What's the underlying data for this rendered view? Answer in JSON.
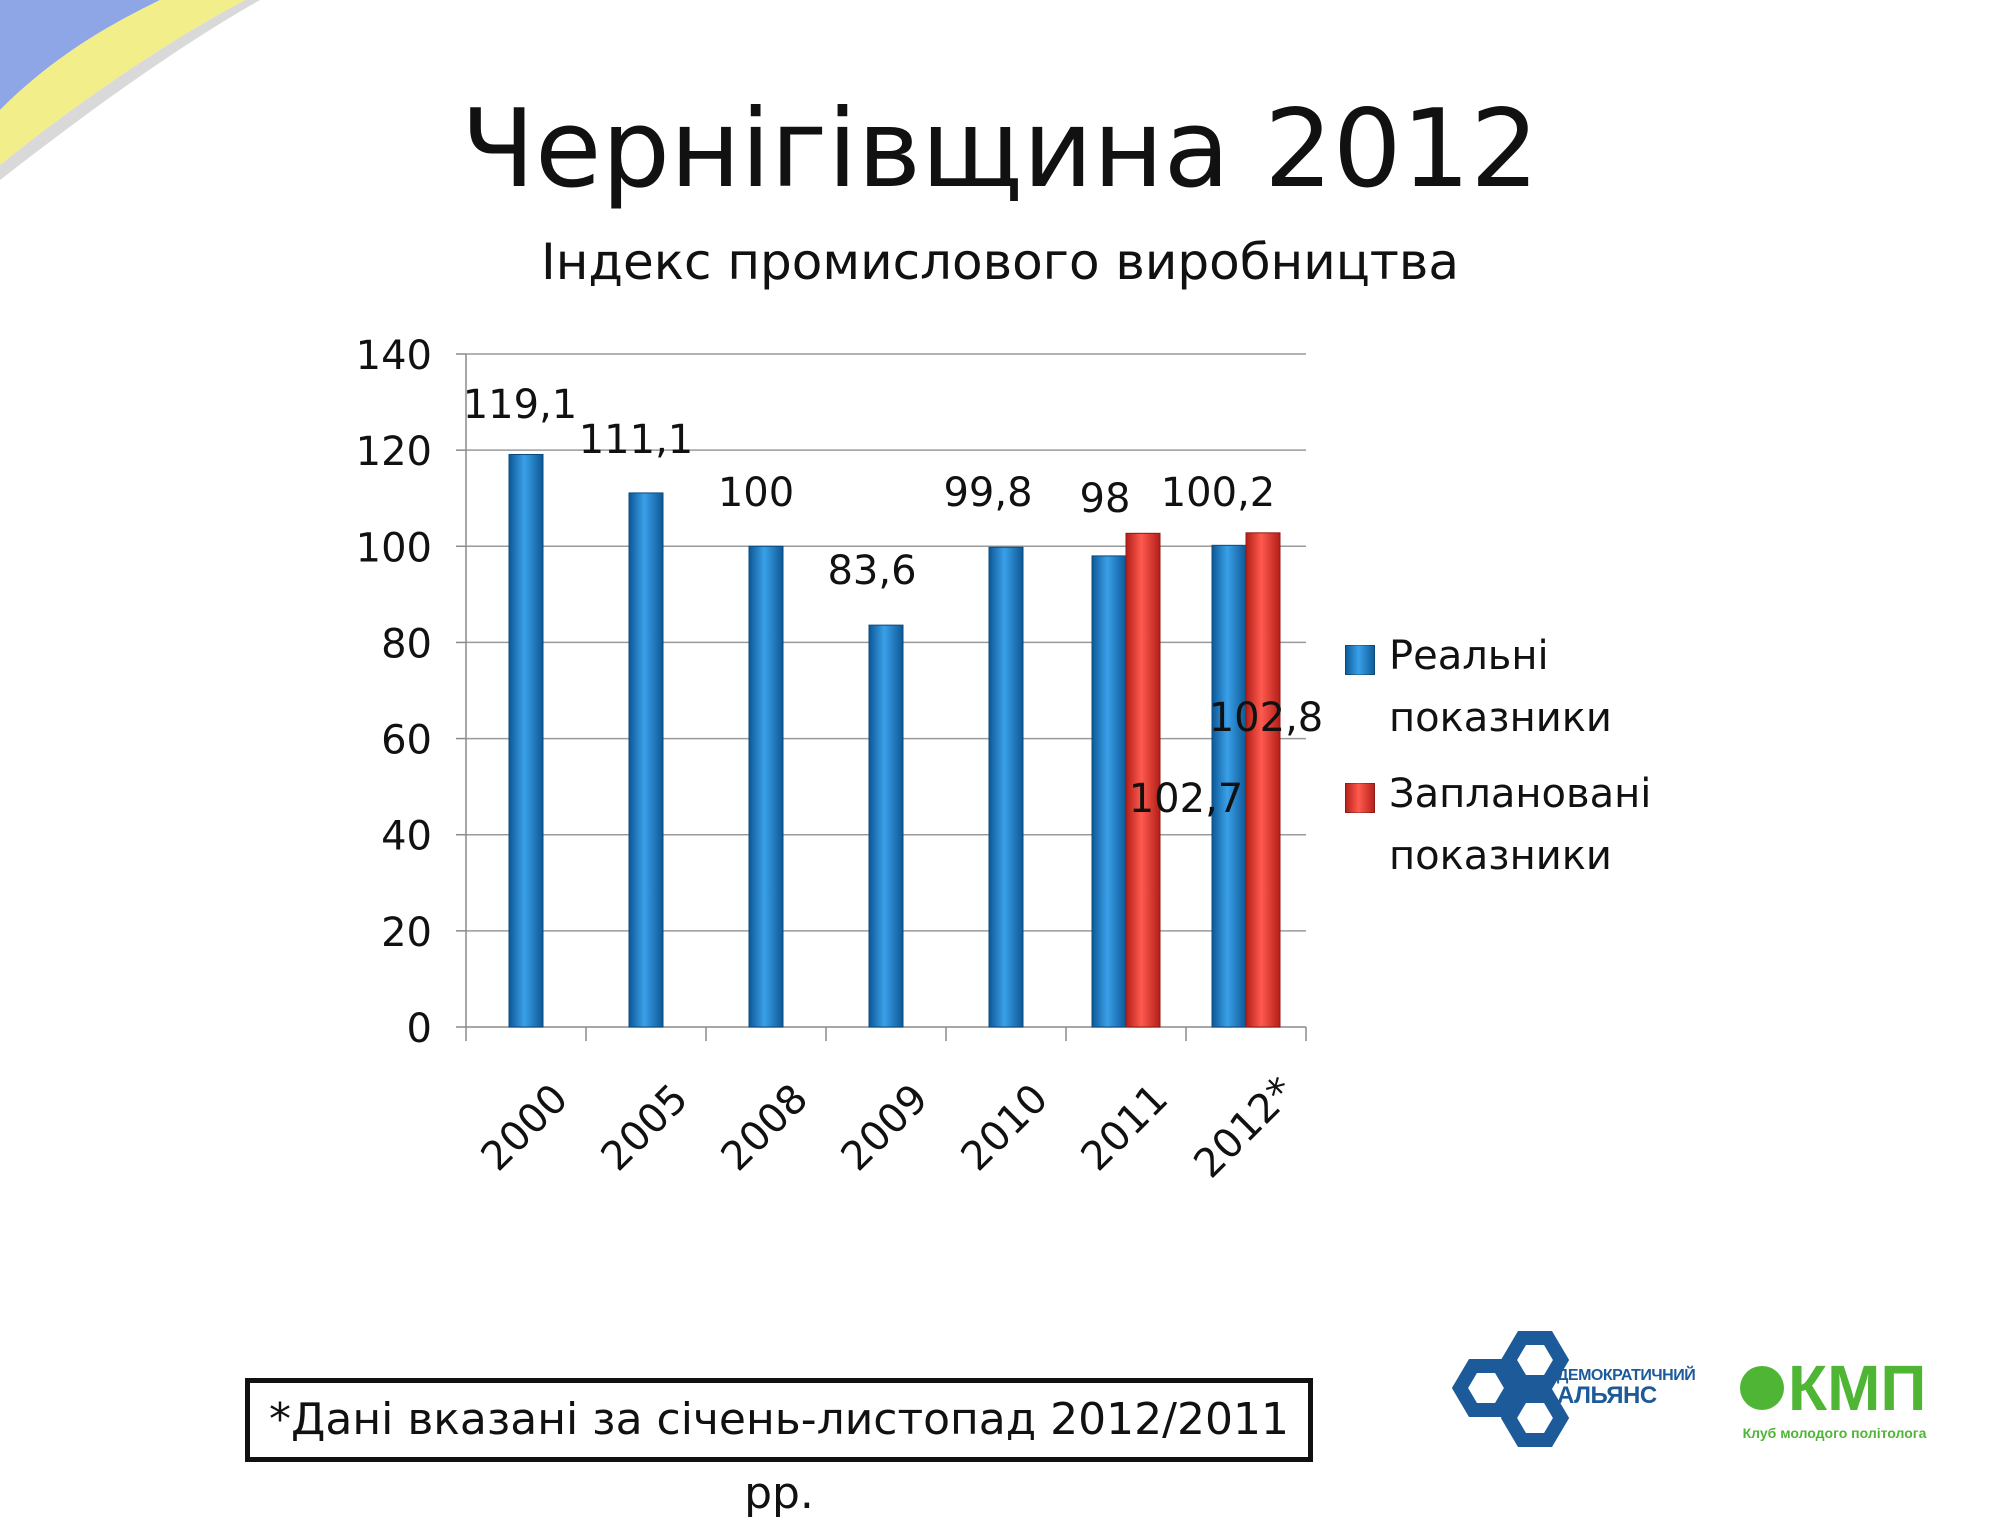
{
  "slide": {
    "title": "Чернігівщина 2012",
    "footnote": "*Дані вказані за січень-листопад 2012/2011 рр."
  },
  "logos": {
    "da_top": "ДЕМОКРАТИЧНИЙ",
    "da_bottom": "АЛЬЯНС",
    "kmp_text": "КМП",
    "kmp_sub": "Клуб молодого політолога"
  },
  "chart_data": {
    "type": "bar",
    "title": "Індекс промислового виробництва",
    "categories": [
      "2000",
      "2005",
      "2008",
      "2009",
      "2010",
      "2011",
      "2012*"
    ],
    "series": [
      {
        "name": "Реальні\nпоказники",
        "color": "#1b7ec5",
        "values": [
          119.1,
          111.1,
          100,
          83.6,
          99.8,
          98,
          100.2
        ],
        "labels": [
          "119,1",
          "111,1",
          "100",
          "83,6",
          "99,8",
          "98",
          "100,2"
        ]
      },
      {
        "name": "Заплановані\nпоказники",
        "color": "#e33b30",
        "values": [
          null,
          null,
          null,
          null,
          null,
          102.7,
          102.8
        ],
        "labels": [
          null,
          null,
          null,
          null,
          null,
          "102,7",
          "102,8"
        ]
      }
    ],
    "ylim": [
      0,
      140
    ],
    "yticks": [
      0,
      20,
      40,
      60,
      80,
      100,
      120,
      140
    ],
    "grid": true,
    "legend": "right"
  },
  "colors": {
    "ribbon_blue": "#8fa6e6",
    "ribbon_yellow": "#f2ef8a",
    "da_blue": "#1d5a9a",
    "kmp_green": "#4fb635"
  }
}
